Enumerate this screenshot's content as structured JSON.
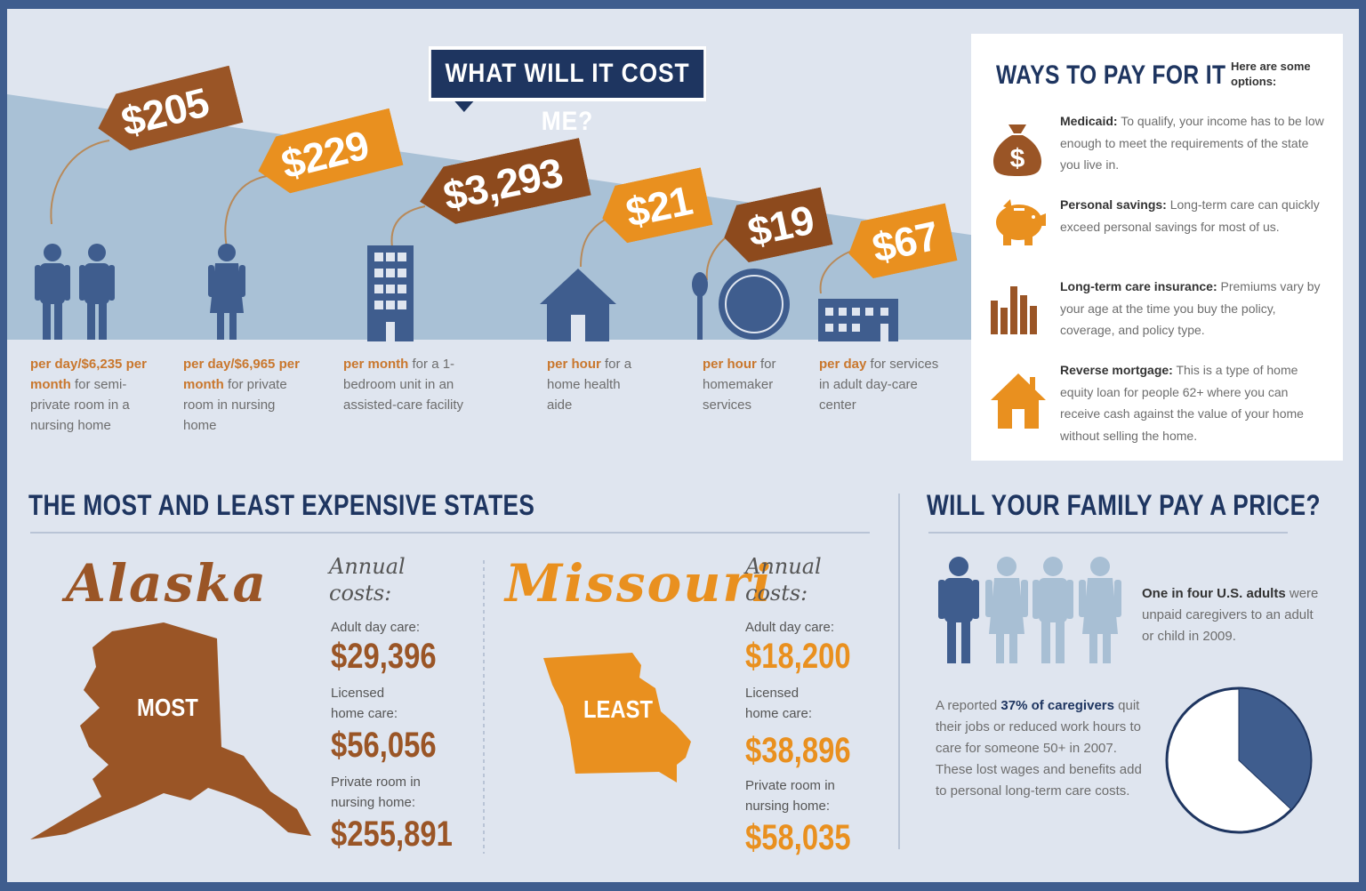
{
  "header": {
    "title": "WHAT WILL IT COST ME?"
  },
  "costs": [
    {
      "price": "$205",
      "caption_hl1": "per day/$6,235",
      "caption_hl2": "per month",
      "caption_rest": "for semi-private room in a nursing home"
    },
    {
      "price": "$229",
      "caption_hl1": "per day/$6,965",
      "caption_hl2": "per month",
      "caption_rest": "for private room in nursing home"
    },
    {
      "price": "$3,293",
      "caption_hl1": "per month",
      "caption_rest": "for a 1-bedroom unit in an assisted-care facility"
    },
    {
      "price": "$21",
      "caption_hl1": "per hour",
      "caption_rest": "for a home health aide"
    },
    {
      "price": "$19",
      "caption_hl1": "per hour",
      "caption_rest": "for homemaker services"
    },
    {
      "price": "$67",
      "caption_hl1": "per day",
      "caption_rest": "for services in adult day-care center"
    }
  ],
  "ways": {
    "title": "WAYS TO PAY FOR IT",
    "subtitle": "Here are some options:",
    "items": [
      {
        "icon": "money-bag-icon",
        "name": "Medicaid:",
        "text": "To qualify, your income has to be low enough to meet the requirements of the state you live in."
      },
      {
        "icon": "piggy-bank-icon",
        "name": "Personal savings:",
        "text": "Long-term care can quickly exceed personal savings for most of us."
      },
      {
        "icon": "bar-chart-icon",
        "name": "Long-term care insurance:",
        "text": "Premiums vary by your age at the time you buy the policy, coverage, and policy type."
      },
      {
        "icon": "house-icon",
        "name": "Reverse mortgage:",
        "text": "This is a type of home equity loan for people 62+ where you can receive cash against the value of your home without selling the home."
      }
    ]
  },
  "states": {
    "title": "THE MOST AND LEAST EXPENSIVE STATES",
    "annual_label": "Annual costs:",
    "most": {
      "name": "Alaska",
      "badge": "MOST",
      "adult_day_label": "Adult day care:",
      "adult_day": "$29,396",
      "home_care_label": "Licensed home care:",
      "home_care": "$56,056",
      "private_room_label": "Private room in nursing home:",
      "private_room": "$255,891"
    },
    "least": {
      "name": "Missouri",
      "badge": "LEAST",
      "adult_day_label": "Adult day care:",
      "adult_day": "$18,200",
      "home_care_label": "Licensed home care:",
      "home_care": "$38,896",
      "private_room_label": "Private room in nursing home:",
      "private_room": "$58,035"
    }
  },
  "family": {
    "title": "WILL YOUR FAMILY PAY A PRICE?",
    "stat1_bold": "One in four U.S. adults",
    "stat1_rest": "were unpaid caregivers to an adult or child in 2009.",
    "stat2_pre": "A reported",
    "stat2_bold": "37% of caregivers",
    "stat2_rest": "quit their jobs or reduced work hours to care for someone 50+ in 2007. These lost wages and benefits add to personal long-term care costs.",
    "pie_fraction": 0.37
  },
  "colors": {
    "navy": "#1e3560",
    "orange": "#e9901f",
    "brown": "#9a5526",
    "blue": "#3f5d8e",
    "light_blue": "#a8bfd4"
  }
}
